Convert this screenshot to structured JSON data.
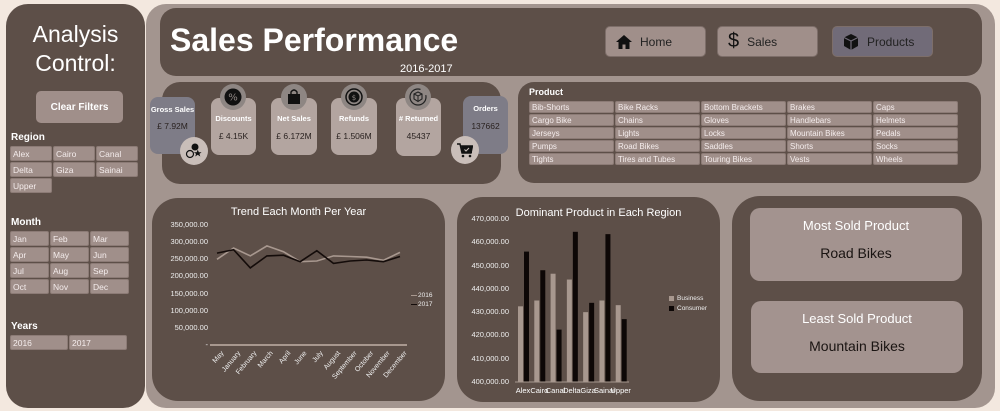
{
  "sidebar": {
    "title": "Analysis Control:",
    "clear_filters": "Clear Filters",
    "region": {
      "label": "Region",
      "items": [
        "Alex",
        "Cairo",
        "Canal",
        "Delta",
        "Giza",
        "Sainai",
        "Upper"
      ]
    },
    "month": {
      "label": "Month",
      "items": [
        "Jan",
        "Feb",
        "Mar",
        "Apr",
        "May",
        "Jun",
        "Jul",
        "Aug",
        "Sep",
        "Oct",
        "Nov",
        "Dec"
      ]
    },
    "years": {
      "label": "Years",
      "items": [
        "2016",
        "2017"
      ]
    }
  },
  "header": {
    "title": "Sales Performance",
    "subtitle": "2016-2017",
    "nav": [
      {
        "label": "Home",
        "icon": "home-icon"
      },
      {
        "label": "Sales",
        "icon": "dollar-icon"
      },
      {
        "label": "Products",
        "icon": "box-icon",
        "active": true
      }
    ]
  },
  "kpis": [
    {
      "label": "Gross Sales",
      "value": "£ 7.92M",
      "icon": "sales-badge-icon"
    },
    {
      "label": "Discounts",
      "value": "£ 4.15K",
      "icon": "percent-badge-icon"
    },
    {
      "label": "Net Sales",
      "value": "£ 6.172M",
      "icon": "shopping-bag-icon"
    },
    {
      "label": "Refunds",
      "value": "£ 1.506M",
      "icon": "refund-icon"
    },
    {
      "label": "# Returned",
      "value": "45437",
      "icon": "return-box-icon"
    },
    {
      "label": "Orders",
      "value": "137662",
      "icon": "cart-icon"
    }
  ],
  "product": {
    "label": "Product",
    "items": [
      "Bib-Shorts",
      "Bike Racks",
      "Bottom Brackets",
      "Brakes",
      "Caps",
      "Cargo Bike",
      "Chains",
      "Gloves",
      "Handlebars",
      "Helmets",
      "Jerseys",
      "Lights",
      "Locks",
      "Mountain Bikes",
      "Pedals",
      "Pumps",
      "Road Bikes",
      "Saddles",
      "Shorts",
      "Socks",
      "Tights",
      "Tires and Tubes",
      "Touring Bikes",
      "Vests",
      "Wheels"
    ]
  },
  "cards": {
    "most_sold": {
      "title": "Most Sold Product",
      "value": "Road Bikes"
    },
    "least_sold": {
      "title": "Least Sold Product",
      "value": "Mountain Bikes"
    }
  },
  "colors": {
    "panel": "#5d4f48",
    "chip": "#a08f8a",
    "series_2016": "#a8988f",
    "series_2017": "#140c0a",
    "business": "#a8988f",
    "consumer": "#0d0706"
  },
  "chart_data": [
    {
      "type": "line",
      "title": "Trend Each Month Per Year",
      "categories": [
        "May",
        "January",
        "February",
        "March",
        "April",
        "June",
        "July",
        "August",
        "September",
        "October",
        "November",
        "December"
      ],
      "series": [
        {
          "name": "2016",
          "values": [
            250000,
            283000,
            260000,
            289000,
            272000,
            243000,
            245000,
            260000,
            258000,
            256000,
            247000,
            270000
          ]
        },
        {
          "name": "2017",
          "values": [
            268000,
            278000,
            225000,
            260000,
            262000,
            243000,
            275000,
            238000,
            245000,
            248000,
            243000,
            258000
          ]
        }
      ],
      "yticks": [
        "350,000.00",
        "300,000.00",
        "250,000.00",
        "200,000.00",
        "150,000.00",
        "100,000.00",
        "50,000.00",
        "-"
      ],
      "ylim": [
        0,
        350000
      ],
      "legend_position": "right",
      "grid": false
    },
    {
      "type": "bar",
      "title": "Dominant Product in Each Region",
      "categories": [
        "Alex",
        "Cairo",
        "Canal",
        "Delta",
        "Giza",
        "Sainai",
        "Upper"
      ],
      "series": [
        {
          "name": "Business",
          "values": [
            432500,
            435000,
            446500,
            444000,
            430000,
            435000,
            433000
          ]
        },
        {
          "name": "Consumer",
          "values": [
            456000,
            448000,
            422500,
            464500,
            434000,
            463500,
            427000
          ]
        }
      ],
      "yticks": [
        "470,000.00",
        "460,000.00",
        "450,000.00",
        "440,000.00",
        "430,000.00",
        "420,000.00",
        "410,000.00",
        "400,000.00"
      ],
      "ylim": [
        400000,
        470000
      ],
      "legend_position": "right",
      "grid": false
    }
  ]
}
